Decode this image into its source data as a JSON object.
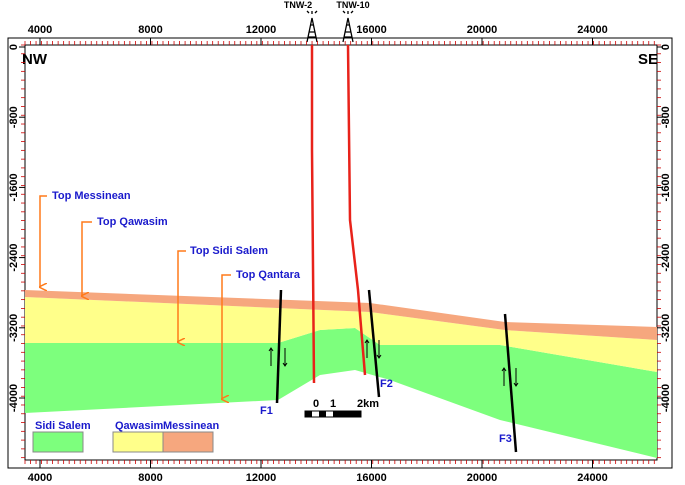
{
  "axis": {
    "x_ticks": [
      4000,
      8000,
      12000,
      16000,
      20000,
      24000
    ],
    "y_ticks": [
      0,
      -800,
      -1600,
      -2400,
      -3200,
      -4000
    ]
  },
  "corners": {
    "left": "NW",
    "right": "SE"
  },
  "wells": [
    {
      "label": "TNW-2"
    },
    {
      "label": "TNW-10"
    }
  ],
  "tops": [
    "Top Messinean",
    "Top Qawasim",
    "Top Sidi Salem",
    "Top Qantara"
  ],
  "faults": [
    "F1",
    "F2",
    "F3"
  ],
  "legend": [
    "Sidi Salem",
    "Qawasim",
    "Messinean"
  ],
  "scale_bar": [
    "0",
    "1",
    "2km"
  ]
}
